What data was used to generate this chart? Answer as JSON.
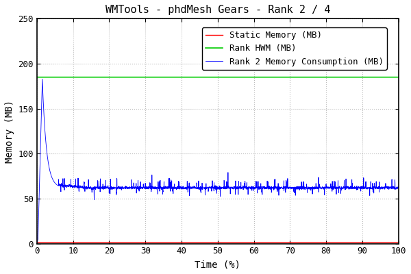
{
  "title": "WMTools - phdMesh Gears - Rank 2 / 4",
  "xlabel": "Time (%)",
  "ylabel": "Memory (MB)",
  "xlim": [
    0,
    100
  ],
  "ylim": [
    0,
    250
  ],
  "xticks": [
    0,
    10,
    20,
    30,
    40,
    50,
    60,
    70,
    80,
    90,
    100
  ],
  "yticks": [
    0,
    50,
    100,
    150,
    200,
    250
  ],
  "hwm_value": 185,
  "static_value": 1,
  "base_memory": 62,
  "peak_memory": 183,
  "colors": {
    "static": "#ff0000",
    "hwm": "#00cc00",
    "consumption": "#0000ff"
  },
  "legend_labels": [
    "Static Memory (MB)",
    "Rank HWM (MB)",
    "Rank 2 Memory Consumption (MB)"
  ],
  "background": "#ffffff",
  "grid_color": "#bbbbbb",
  "title_fontsize": 11,
  "label_fontsize": 10,
  "tick_fontsize": 9,
  "legend_fontsize": 9
}
